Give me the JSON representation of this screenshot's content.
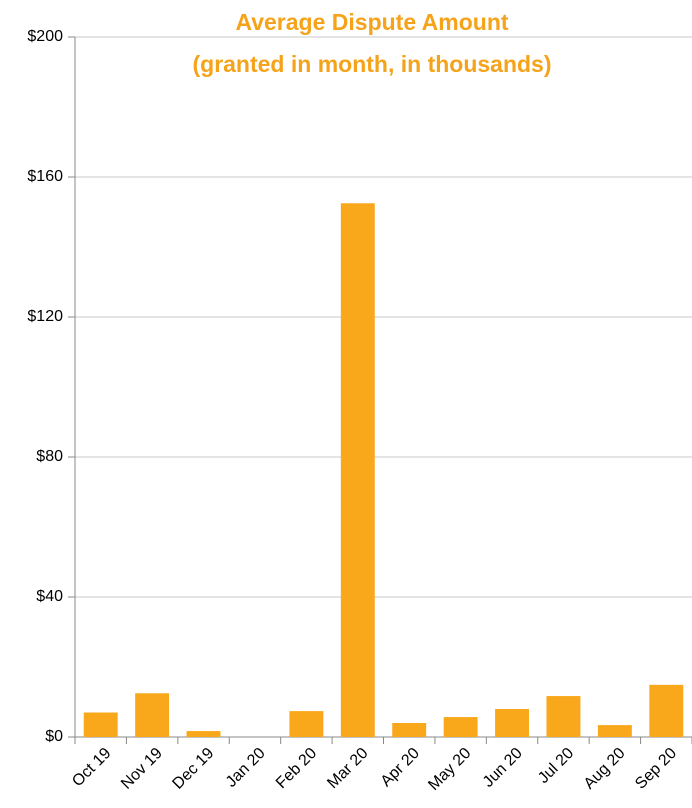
{
  "chart_data": {
    "type": "bar",
    "title": "Average Dispute Amount",
    "subtitle": "(granted in month, in thousands)",
    "categories": [
      "Oct 19",
      "Nov 19",
      "Dec 19",
      "Jan 20",
      "Feb 20",
      "Mar 20",
      "Apr 20",
      "May 20",
      "Jun 20",
      "Jul 20",
      "Aug 20",
      "Sep 20"
    ],
    "values": [
      7,
      12.5,
      1.7,
      0,
      7.4,
      152.5,
      4,
      5.7,
      8,
      11.7,
      3.4,
      14.9
    ],
    "color": "#f9a81b",
    "ylim": [
      0,
      200
    ],
    "yticks": [
      {
        "value": 0,
        "label": "$0"
      },
      {
        "value": 40,
        "label": "$40"
      },
      {
        "value": 80,
        "label": "$80"
      },
      {
        "value": 120,
        "label": "$120"
      },
      {
        "value": 160,
        "label": "$160"
      },
      {
        "value": 200,
        "label": "$200"
      }
    ],
    "grid": true
  }
}
